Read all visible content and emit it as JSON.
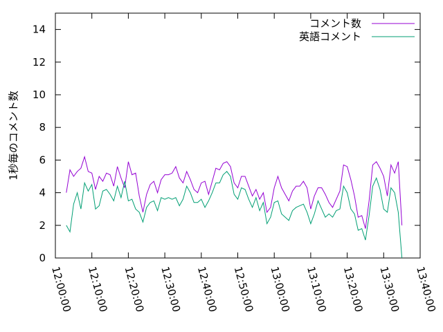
{
  "chart_data": {
    "type": "line",
    "y_label": "1秒毎のコメント数",
    "x": [
      "12:03:00",
      "12:04:00",
      "12:05:00",
      "12:06:00",
      "12:07:00",
      "12:08:00",
      "12:09:00",
      "12:10:00",
      "12:11:00",
      "12:12:00",
      "12:13:00",
      "12:14:00",
      "12:15:00",
      "12:16:00",
      "12:17:00",
      "12:18:00",
      "12:19:00",
      "12:20:00",
      "12:21:00",
      "12:22:00",
      "12:23:00",
      "12:24:00",
      "12:25:00",
      "12:26:00",
      "12:27:00",
      "12:28:00",
      "12:29:00",
      "12:30:00",
      "12:31:00",
      "12:32:00",
      "12:33:00",
      "12:34:00",
      "12:35:00",
      "12:36:00",
      "12:37:00",
      "12:38:00",
      "12:39:00",
      "12:40:00",
      "12:41:00",
      "12:42:00",
      "12:43:00",
      "12:44:00",
      "12:45:00",
      "12:46:00",
      "12:47:00",
      "12:48:00",
      "12:49:00",
      "12:50:00",
      "12:51:00",
      "12:52:00",
      "12:53:00",
      "12:54:00",
      "12:55:00",
      "12:56:00",
      "12:57:00",
      "12:58:00",
      "12:59:00",
      "13:00:00",
      "13:01:00",
      "13:02:00",
      "13:03:00",
      "13:04:00",
      "13:05:00",
      "13:06:00",
      "13:07:00",
      "13:08:00",
      "13:09:00",
      "13:10:00",
      "13:11:00",
      "13:12:00",
      "13:13:00",
      "13:14:00",
      "13:15:00",
      "13:16:00",
      "13:17:00",
      "13:18:00",
      "13:19:00",
      "13:20:00",
      "13:21:00",
      "13:22:00",
      "13:23:00",
      "13:24:00",
      "13:25:00",
      "13:26:00",
      "13:27:00",
      "13:28:00",
      "13:29:00",
      "13:30:00",
      "13:31:00",
      "13:32:00",
      "13:33:00",
      "13:34:00",
      "13:35:00"
    ],
    "series": [
      {
        "name": "コメント数",
        "color": "#9400d3",
        "values": [
          4.0,
          5.4,
          5.0,
          5.3,
          5.5,
          6.2,
          5.3,
          5.2,
          4.2,
          5.0,
          4.7,
          5.2,
          5.1,
          4.4,
          5.6,
          4.9,
          4.3,
          5.9,
          5.1,
          5.2,
          3.8,
          2.8,
          3.9,
          4.5,
          4.7,
          4.0,
          4.8,
          5.1,
          5.1,
          5.2,
          5.6,
          4.9,
          4.6,
          5.3,
          4.8,
          4.2,
          4.0,
          4.6,
          4.7,
          3.9,
          4.7,
          5.5,
          5.4,
          5.8,
          5.9,
          5.6,
          4.6,
          4.3,
          5.0,
          5.0,
          4.4,
          3.8,
          4.2,
          3.6,
          4.0,
          2.8,
          3.1,
          4.3,
          5.0,
          4.3,
          3.9,
          3.5,
          4.1,
          4.4,
          4.4,
          4.7,
          4.3,
          3.0,
          3.8,
          4.3,
          4.3,
          3.9,
          3.4,
          3.1,
          3.6,
          4.1,
          5.7,
          5.6,
          4.8,
          3.8,
          2.5,
          2.6,
          1.8,
          3.5,
          5.7,
          5.9,
          5.5,
          5.0,
          3.8,
          5.7,
          5.2,
          5.9,
          2.0
        ]
      },
      {
        "name": "英語コメント",
        "color": "#009e73",
        "values": [
          2.0,
          1.6,
          3.3,
          4.0,
          3.0,
          4.6,
          4.1,
          4.5,
          3.0,
          3.2,
          4.1,
          4.2,
          3.9,
          3.5,
          4.4,
          3.7,
          4.7,
          3.5,
          3.6,
          3.0,
          2.8,
          2.2,
          3.1,
          3.4,
          3.5,
          2.9,
          3.7,
          3.6,
          3.7,
          3.6,
          3.7,
          3.2,
          3.6,
          4.4,
          4.0,
          3.4,
          3.4,
          3.6,
          3.1,
          3.5,
          4.0,
          4.6,
          4.6,
          5.1,
          5.3,
          5.0,
          3.9,
          3.6,
          4.3,
          4.2,
          3.6,
          3.1,
          3.7,
          2.9,
          3.4,
          2.1,
          2.5,
          3.4,
          3.5,
          2.7,
          2.5,
          2.3,
          2.9,
          3.1,
          3.2,
          3.3,
          2.8,
          2.1,
          2.7,
          3.5,
          3.0,
          2.5,
          2.7,
          2.5,
          2.9,
          3.0,
          4.4,
          4.0,
          3.0,
          2.7,
          1.7,
          1.8,
          1.1,
          2.6,
          4.4,
          4.9,
          4.2,
          3.0,
          2.8,
          4.3,
          4.0,
          2.8,
          0.0
        ]
      }
    ],
    "xlim": [
      "12:00:00",
      "13:40:00"
    ],
    "xticks": [
      "12:00:00",
      "12:10:00",
      "12:20:00",
      "12:30:00",
      "12:40:00",
      "12:50:00",
      "13:00:00",
      "13:10:00",
      "13:20:00",
      "13:30:00",
      "13:40:00"
    ],
    "ylim": [
      0,
      15
    ],
    "yticks": [
      0,
      2,
      4,
      6,
      8,
      10,
      12,
      14
    ],
    "legend": "top-right",
    "grid": false
  }
}
